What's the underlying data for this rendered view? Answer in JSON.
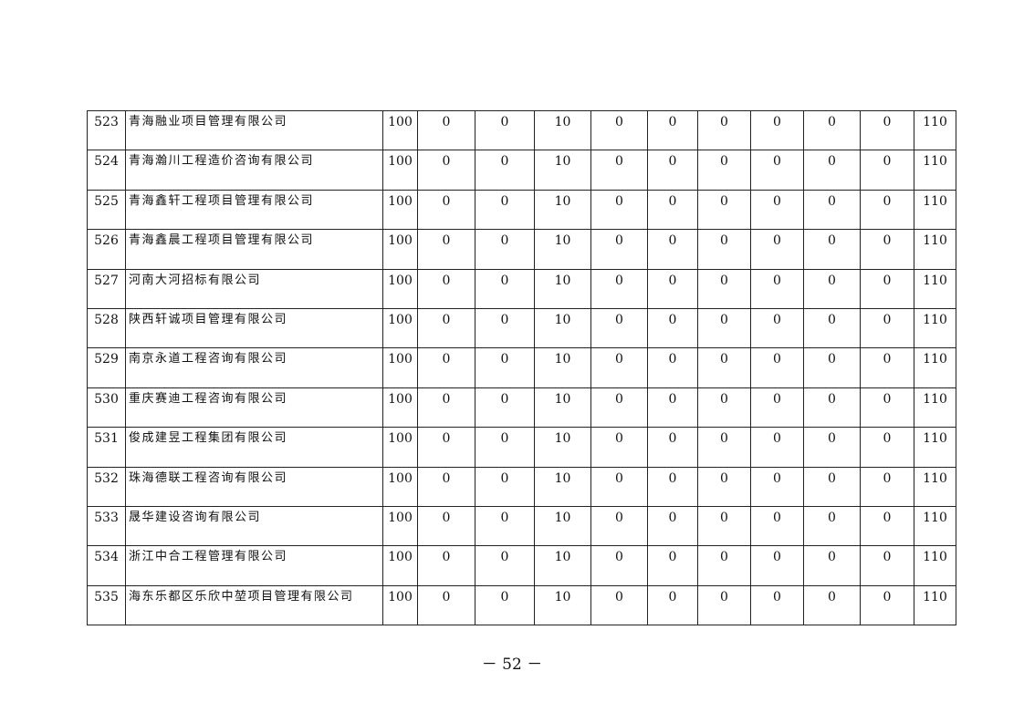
{
  "table": {
    "rows": [
      [
        "523",
        "青海融业项目管理有限公司",
        "100",
        "0",
        "0",
        "10",
        "0",
        "0",
        "0",
        "0",
        "0",
        "0",
        "110"
      ],
      [
        "524",
        "青海瀚川工程造价咨询有限公司",
        "100",
        "0",
        "0",
        "10",
        "0",
        "0",
        "0",
        "0",
        "0",
        "0",
        "110"
      ],
      [
        "525",
        "青海鑫轩工程项目管理有限公司",
        "100",
        "0",
        "0",
        "10",
        "0",
        "0",
        "0",
        "0",
        "0",
        "0",
        "110"
      ],
      [
        "526",
        "青海鑫晨工程项目管理有限公司",
        "100",
        "0",
        "0",
        "10",
        "0",
        "0",
        "0",
        "0",
        "0",
        "0",
        "110"
      ],
      [
        "527",
        "河南大河招标有限公司",
        "100",
        "0",
        "0",
        "10",
        "0",
        "0",
        "0",
        "0",
        "0",
        "0",
        "110"
      ],
      [
        "528",
        "陕西轩诚项目管理有限公司",
        "100",
        "0",
        "0",
        "10",
        "0",
        "0",
        "0",
        "0",
        "0",
        "0",
        "110"
      ],
      [
        "529",
        "南京永道工程咨询有限公司",
        "100",
        "0",
        "0",
        "10",
        "0",
        "0",
        "0",
        "0",
        "0",
        "0",
        "110"
      ],
      [
        "530",
        "重庆赛迪工程咨询有限公司",
        "100",
        "0",
        "0",
        "10",
        "0",
        "0",
        "0",
        "0",
        "0",
        "0",
        "110"
      ],
      [
        "531",
        "俊成建昱工程集团有限公司",
        "100",
        "0",
        "0",
        "10",
        "0",
        "0",
        "0",
        "0",
        "0",
        "0",
        "110"
      ],
      [
        "532",
        "珠海德联工程咨询有限公司",
        "100",
        "0",
        "0",
        "10",
        "0",
        "0",
        "0",
        "0",
        "0",
        "0",
        "110"
      ],
      [
        "533",
        "晟华建设咨询有限公司",
        "100",
        "0",
        "0",
        "10",
        "0",
        "0",
        "0",
        "0",
        "0",
        "0",
        "110"
      ],
      [
        "534",
        "浙江中合工程管理有限公司",
        "100",
        "0",
        "0",
        "10",
        "0",
        "0",
        "0",
        "0",
        "0",
        "0",
        "110"
      ],
      [
        "535",
        "海东乐都区乐欣中堃项目管理有限公司",
        "100",
        "0",
        "0",
        "10",
        "0",
        "0",
        "0",
        "0",
        "0",
        "0",
        "110"
      ]
    ]
  },
  "footer": {
    "page_number": "－ 52 －"
  }
}
